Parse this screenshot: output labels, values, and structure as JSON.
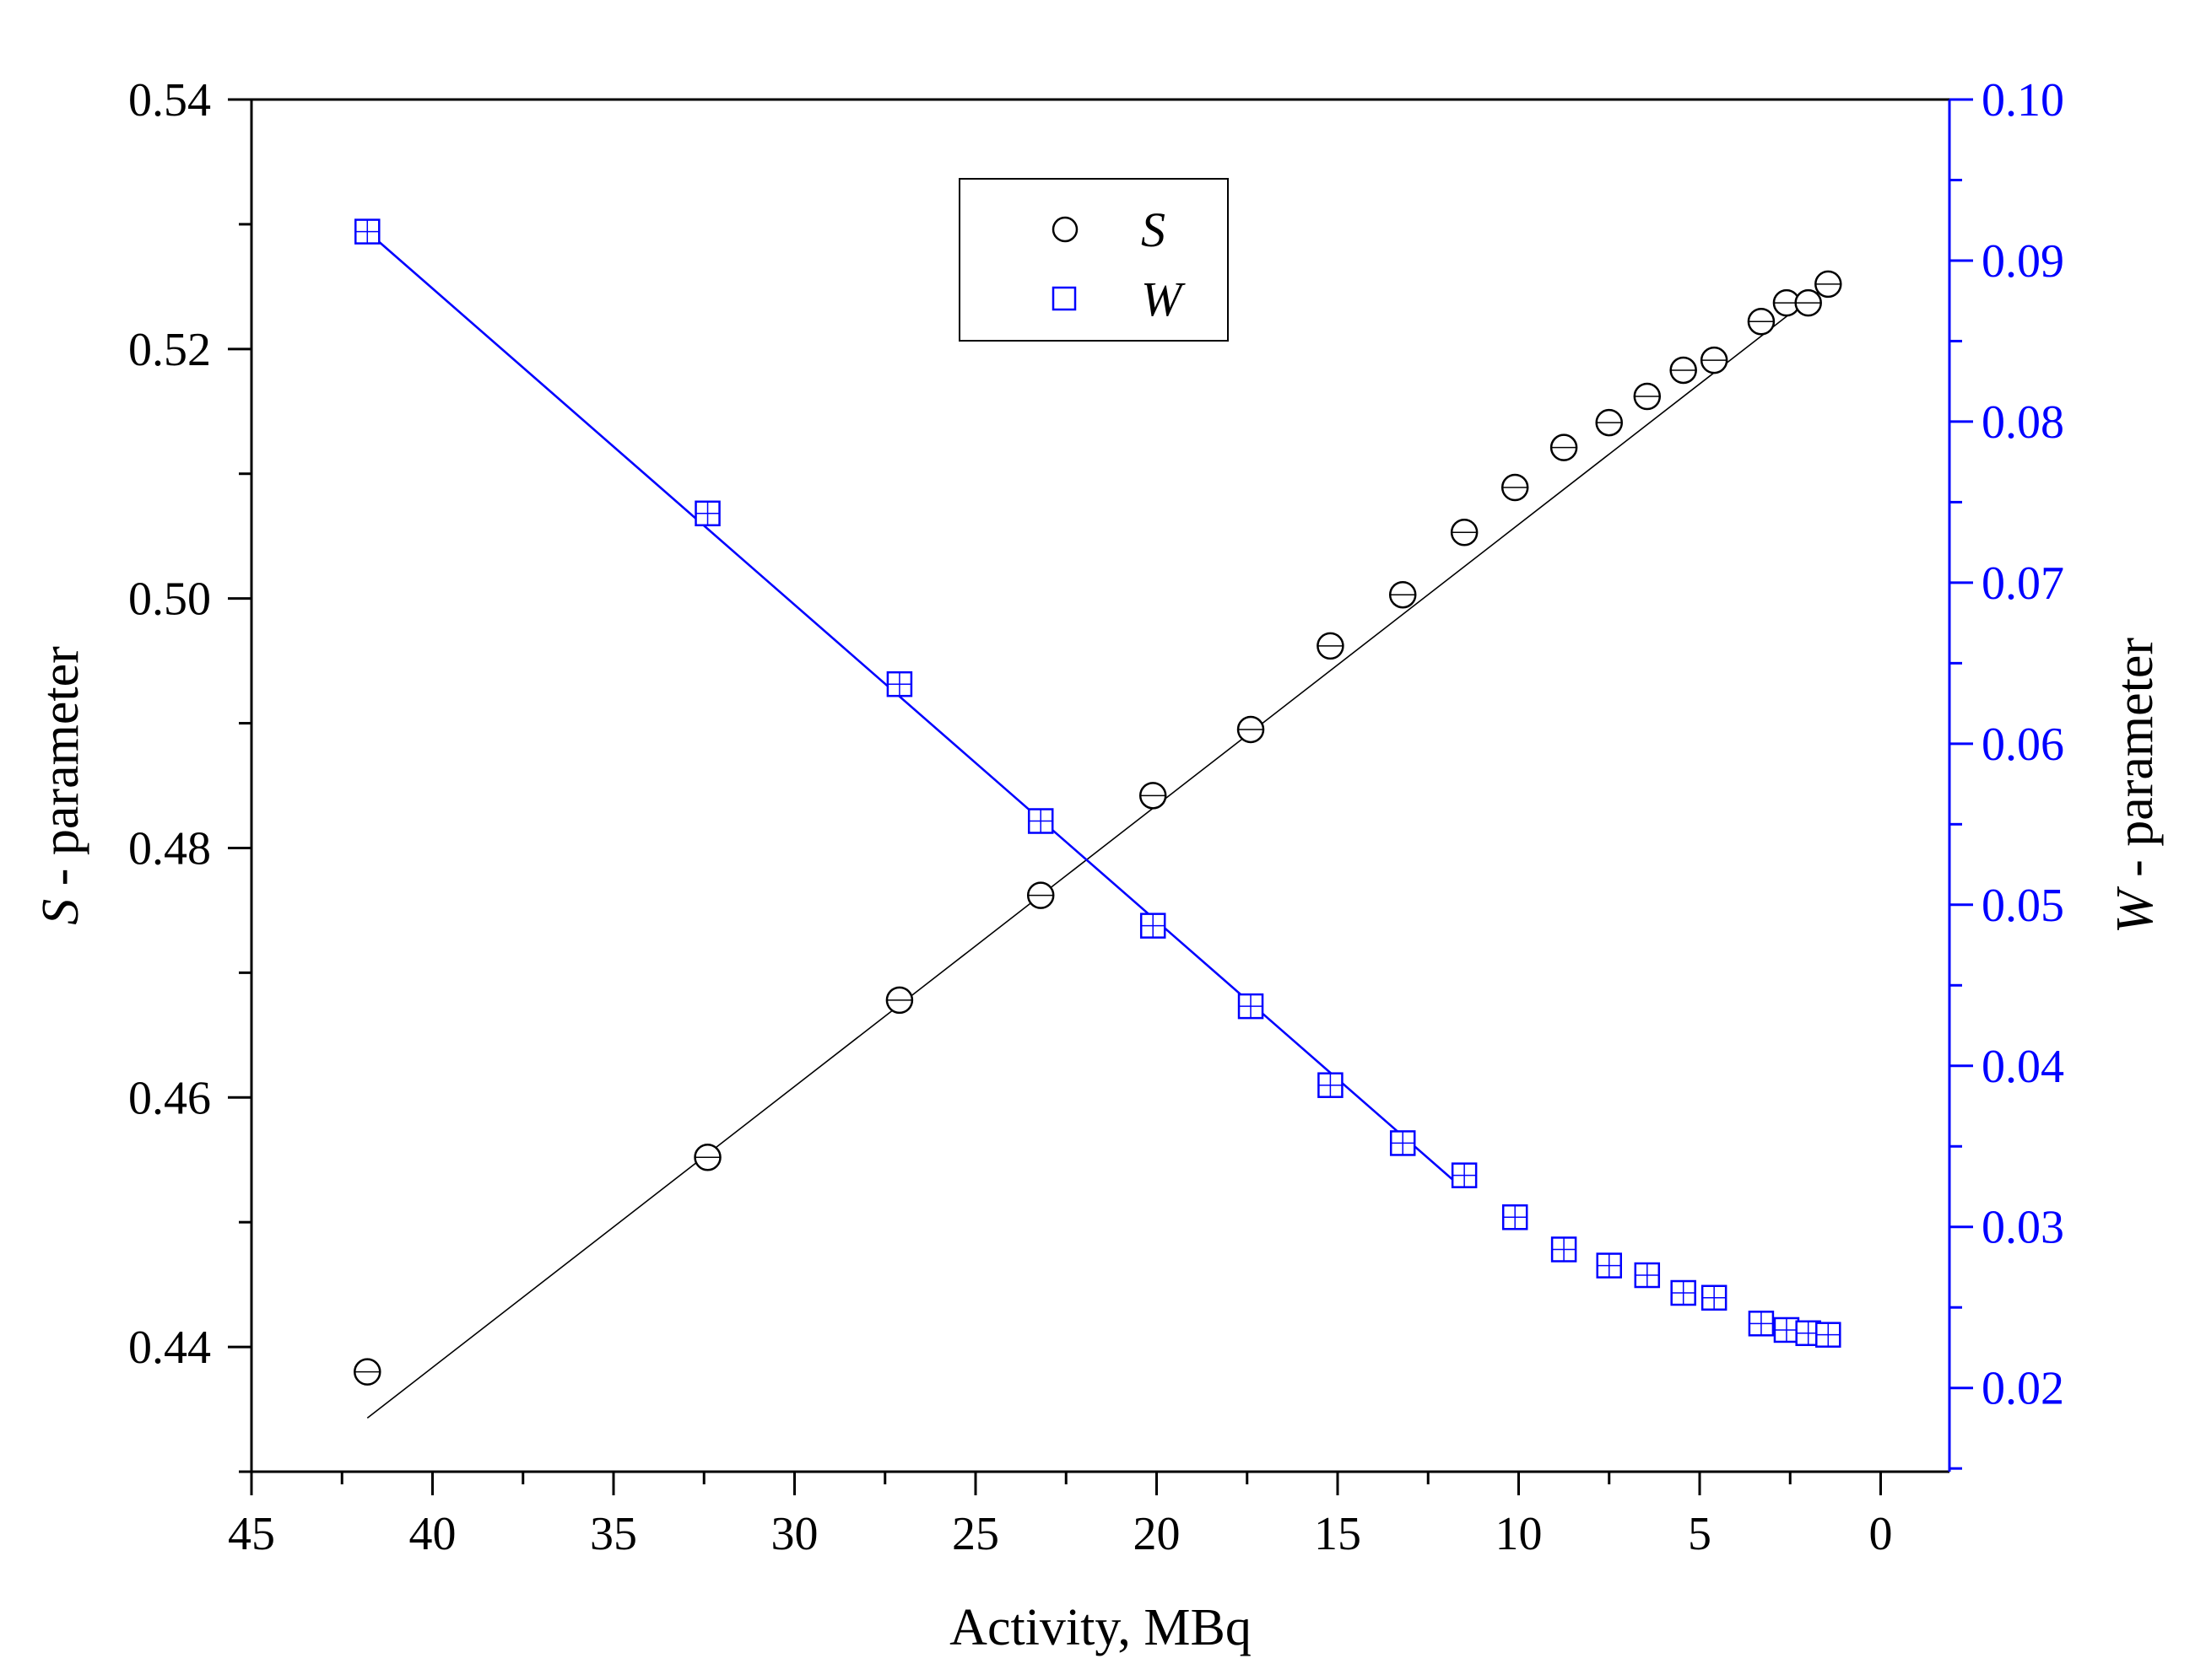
{
  "chart_data": {
    "type": "scatter",
    "x_axis": {
      "label": "Activity, MBq",
      "range": [
        45,
        -1.9
      ],
      "reversed": true,
      "ticks": [
        45,
        40,
        35,
        30,
        25,
        20,
        15,
        10,
        5,
        0
      ],
      "tick_labels": [
        "45",
        "40",
        "35",
        "30",
        "25",
        "20",
        "15",
        "10",
        "5",
        "0"
      ]
    },
    "y_left": {
      "label_symbol": "S",
      "label_rest": " - parameter",
      "range": [
        0.43,
        0.54
      ],
      "ticks": [
        0.44,
        0.46,
        0.48,
        0.5,
        0.52,
        0.54
      ],
      "tick_labels": [
        "0.44",
        "0.46",
        "0.48",
        "0.50",
        "0.52",
        "0.54"
      ],
      "color": "#000000"
    },
    "y_right": {
      "label_symbol": "W",
      "label_rest": " - parameter",
      "range": [
        0.0148,
        0.1
      ],
      "ticks": [
        0.02,
        0.03,
        0.04,
        0.05,
        0.06,
        0.07,
        0.08,
        0.09,
        0.1
      ],
      "tick_labels": [
        "0.02",
        "0.03",
        "0.04",
        "0.05",
        "0.06",
        "0.07",
        "0.08",
        "0.09",
        "0.10"
      ],
      "color": "#0000ff"
    },
    "legend": {
      "position": "top-center",
      "entries": [
        {
          "symbol": "circle",
          "label": "S",
          "color": "#000000"
        },
        {
          "symbol": "square",
          "label": "W",
          "color": "#0000ff"
        }
      ]
    },
    "series": [
      {
        "name": "S",
        "axis": "left",
        "marker": "circle",
        "color": "#000000",
        "x": [
          41.8,
          32.4,
          27.1,
          23.2,
          20.1,
          17.4,
          15.2,
          13.2,
          11.5,
          10.1,
          8.75,
          7.5,
          6.45,
          5.45,
          4.6,
          3.3,
          2.6,
          2.0,
          1.45
        ],
        "y": [
          0.438,
          0.4552,
          0.4678,
          0.4762,
          0.4842,
          0.4895,
          0.4962,
          0.5003,
          0.5053,
          0.5089,
          0.5121,
          0.5141,
          0.5162,
          0.5183,
          0.5191,
          0.5222,
          0.5237,
          0.5237,
          0.5252
        ],
        "fit": {
          "x": [
            41.8,
            1.45
          ],
          "y": [
            0.4343,
            0.5252
          ]
        }
      },
      {
        "name": "W",
        "axis": "right",
        "marker": "square",
        "color": "#0000ff",
        "x": [
          41.8,
          32.4,
          27.1,
          23.2,
          20.1,
          17.4,
          15.2,
          13.2,
          11.5,
          10.1,
          8.75,
          7.5,
          6.45,
          5.45,
          4.6,
          3.3,
          2.6,
          2.0,
          1.45
        ],
        "y": [
          0.0918,
          0.0743,
          0.0637,
          0.0552,
          0.0487,
          0.0437,
          0.0388,
          0.0352,
          0.0332,
          0.0306,
          0.0286,
          0.0276,
          0.027,
          0.0259,
          0.0256,
          0.024,
          0.0236,
          0.0234,
          0.0233
        ],
        "fit": {
          "x": [
            41.8,
            11.6
          ],
          "y": [
            0.0918,
            0.0325
          ]
        }
      }
    ]
  }
}
